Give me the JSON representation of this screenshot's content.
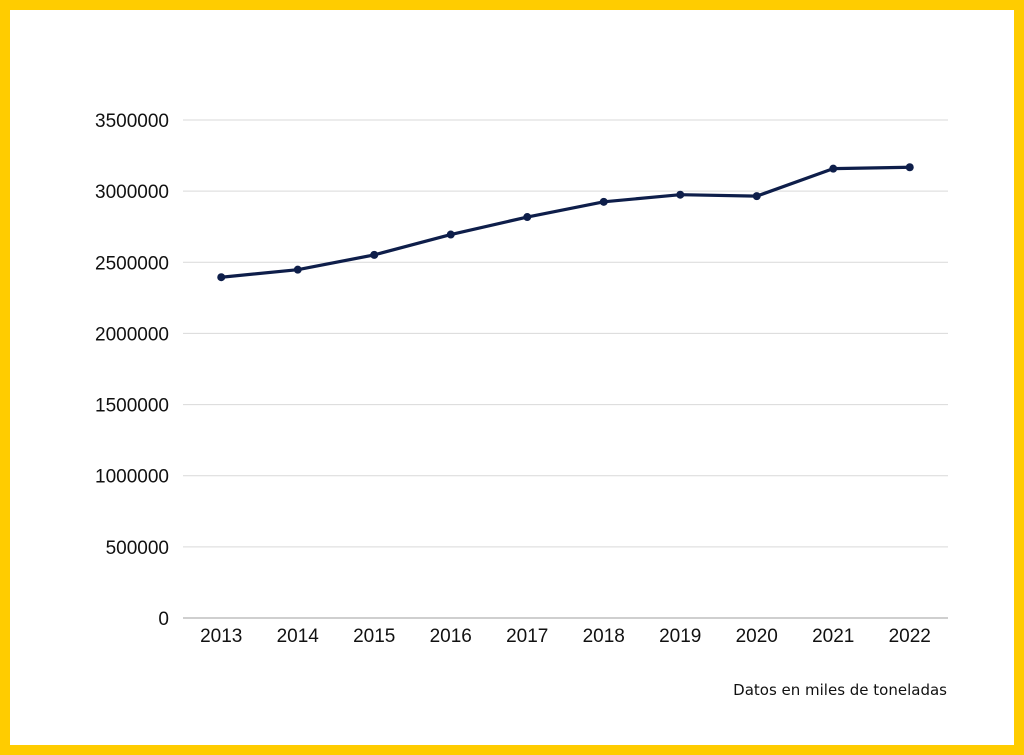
{
  "colors": {
    "border": "#FFCC00",
    "background": "#FFFFFF",
    "line": "#0E1E4A",
    "grid": "#D9D9D9",
    "axis": "#BFBFBF"
  },
  "chart_data": {
    "type": "line",
    "title": "",
    "xlabel": "",
    "ylabel": "",
    "note": "Datos en miles de toneladas",
    "categories": [
      "2013",
      "2014",
      "2015",
      "2016",
      "2017",
      "2018",
      "2019",
      "2020",
      "2021",
      "2022"
    ],
    "series": [
      {
        "name": "",
        "values": [
          2395000,
          2448000,
          2552000,
          2695000,
          2818000,
          2925000,
          2975000,
          2965000,
          3158000,
          3168000
        ]
      }
    ],
    "ylim": [
      0,
      3500000
    ],
    "yticks": [
      "0",
      "500000",
      "1000000",
      "1500000",
      "2000000",
      "2500000",
      "3000000",
      "3500000"
    ],
    "grid": true,
    "legend": "none"
  }
}
